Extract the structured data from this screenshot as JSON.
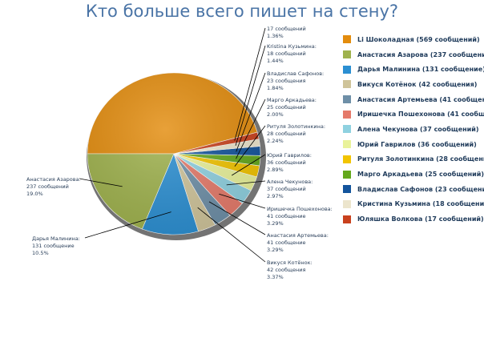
{
  "title": "Кто больше всего пишет на стену?",
  "chart_data": {
    "type": "pie",
    "title": "Кто больше всего пишет на стену?",
    "unit_label": "сообщений",
    "slices": [
      {
        "name": "Li Шоколадная",
        "legend_label": "Li Шоколадная (569 сообщений)",
        "value": 569,
        "color": "#e38c0d",
        "label": null
      },
      {
        "name": "Анастасия Азарова",
        "legend_label": "Анастасия Азарова (237 сообщений)",
        "value": 237,
        "color": "#9fb24d",
        "label": {
          "line1": "Анастасия Азарова:",
          "line2": "237 сообщений",
          "line3": "19.0%"
        }
      },
      {
        "name": "Дарья Малинина",
        "legend_label": "Дарья Малинина (131 сообщение)",
        "value": 131,
        "color": "#2b8fd2",
        "label": {
          "line1": "Дарья Малинина:",
          "line2": "131 сообщение",
          "line3": "10.5%"
        }
      },
      {
        "name": "Викуся Котёнок",
        "legend_label": "Викуся Котёнок (42 сообщения)",
        "value": 42,
        "color": "#cfc49a",
        "label": {
          "line1": "Викуся Котёнок:",
          "line2": "42 сообщения",
          "line3": "3.37%"
        }
      },
      {
        "name": "Анастасия Артемьева",
        "legend_label": "Анастасия Артемьева (41 сообщение)",
        "value": 41,
        "color": "#6e8fa7",
        "label": {
          "line1": "Анастасия Артемьева:",
          "line2": "41 сообщение",
          "line3": "3.29%"
        }
      },
      {
        "name": "Иришечка Пошехонова",
        "legend_label": "Иришечка Пошехонова (41 сообщение",
        "value": 41,
        "color": "#e57a6a",
        "label": {
          "line1": "Иришечка Пошехонова:",
          "line2": "41 сообщение",
          "line3": "3.29%"
        }
      },
      {
        "name": "Алена Чекунова",
        "legend_label": "Алена Чекунова (37 сообщений)",
        "value": 37,
        "color": "#8fd1e0",
        "label": {
          "line1": "Алена Чекунова:",
          "line2": "37 сообщений",
          "line3": "2.97%"
        }
      },
      {
        "name": "Юрий Гаврилов",
        "legend_label": "Юрий Гаврилов (36 сообщений)",
        "value": 36,
        "color": "#e9f29a",
        "label": {
          "line1": "Юрий Гаврилов:",
          "line2": "36 сообщений",
          "line3": "2.89%"
        }
      },
      {
        "name": "Ритуля Золотинкина",
        "legend_label": "Ритуля Золотинкина (28 сообщений)",
        "value": 28,
        "color": "#f2c400",
        "label": {
          "line1": "Ритуля Золотинкина:",
          "line2": "28 сообщений",
          "line3": "2.24%"
        }
      },
      {
        "name": "Марго Аркадьева",
        "legend_label": "Марго Аркадьева (25 сообщений)",
        "value": 25,
        "color": "#64a81c",
        "label": {
          "line1": "Марго Аркадьева:",
          "line2": "25 сообщений",
          "line3": "2.00%"
        }
      },
      {
        "name": "Владислав Сафонов",
        "legend_label": "Владислав Сафонов (23 сообщения)",
        "value": 23,
        "color": "#13549c",
        "label": {
          "line1": "Владислав Сафонов:",
          "line2": "23 сообщения",
          "line3": "1.84%"
        }
      },
      {
        "name": "Кристина Кузьмина",
        "legend_label": "Кристина Кузьмина (18 сообщений)",
        "value": 18,
        "color": "#ece5cc",
        "label": {
          "line1": "Kristina Кузьмина:",
          "line2": "18 сообщений",
          "line3": "1.44%"
        }
      },
      {
        "name": "Юляшка Волкова",
        "legend_label": "Юляшка Волкова (17 сообщений)",
        "value": 17,
        "color": "#c9411d",
        "label": {
          "line1": "17 сообщений",
          "line2": "1.36%",
          "line3": ""
        }
      }
    ],
    "legend_position": "right"
  }
}
